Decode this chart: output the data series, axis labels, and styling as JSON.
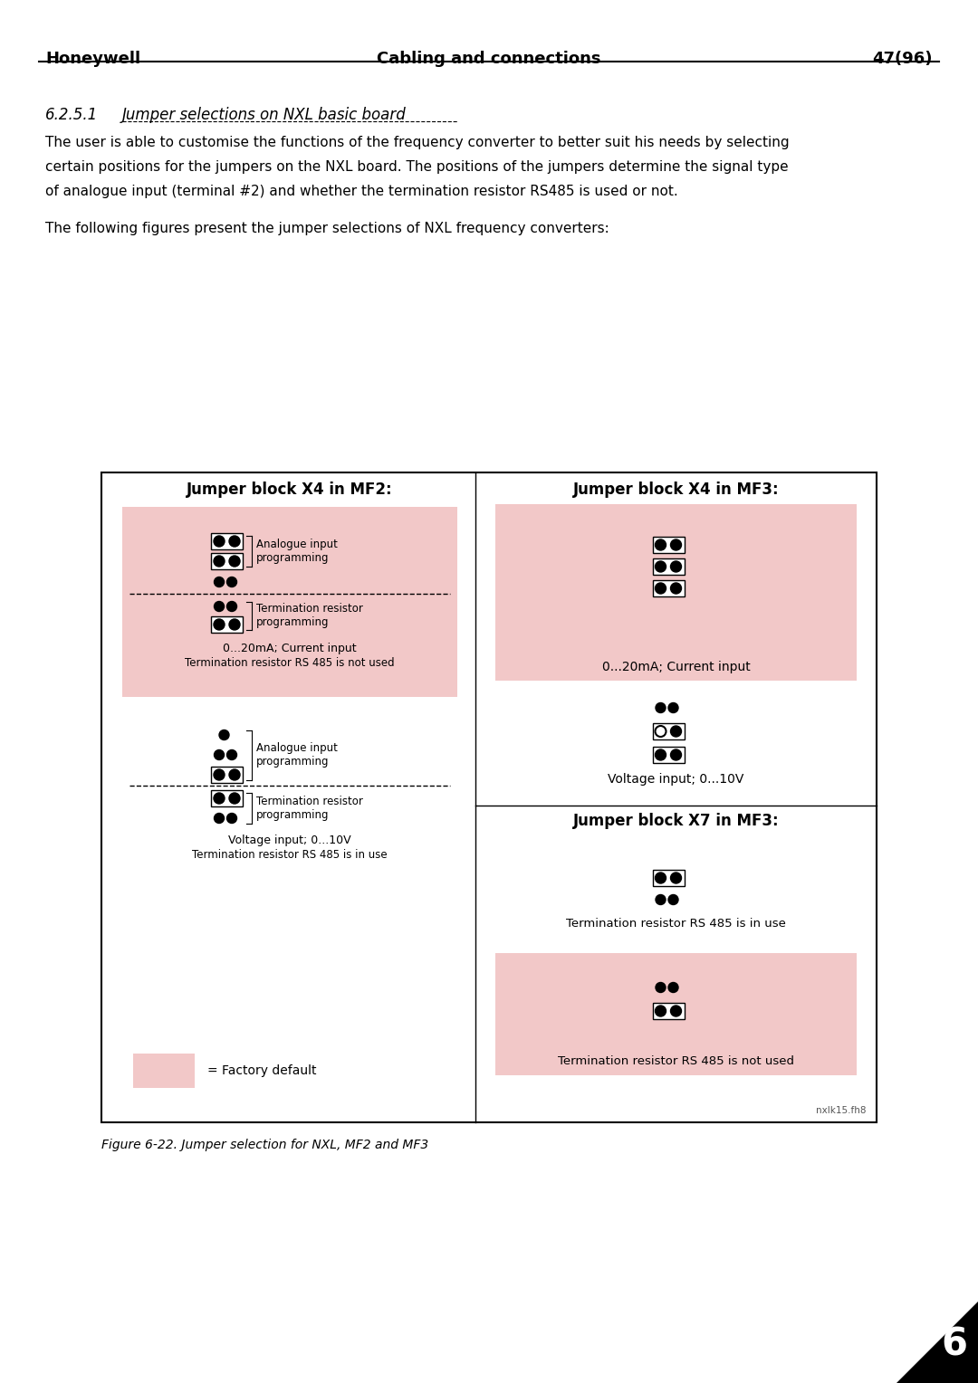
{
  "page_title_left": "Honeywell",
  "page_title_center": "Cabling and connections",
  "page_title_right": "47(96)",
  "section": "6.2.5.1",
  "section_title": "Jumper selections on NXL basic board",
  "para1_line1": "The user is able to customise the functions of the frequency converter to better suit his needs by selecting",
  "para1_line2": "certain positions for the jumpers on the NXL board. The positions of the jumpers determine the signal type",
  "para1_line3": "of analogue input (terminal #2) and whether the termination resistor RS485 is used or not.",
  "para2": "The following figures present the jumper selections of NXL frequency converters:",
  "fig_caption": "Figure 6-22. Jumper selection for NXL, MF2 and MF3",
  "fig_label": "nxlk15.fh8",
  "pink": "#f2c8c8",
  "bg_white": "#ffffff",
  "border_color": "#000000",
  "left_title": "Jumper block X4 in MF2:",
  "right_top_title": "Jumper block X4 in MF3:",
  "right_bot_title": "Jumper block X7 in MF3:",
  "label_analogue": "Analogue input\nprogramming",
  "label_termination": "Termination resistor\nprogramming",
  "label_current": "0...20mA; Current input",
  "label_term_not_used": "Termination resistor RS 485 is not used",
  "label_voltage": "Voltage input; 0...10V",
  "label_term_in_use": "Termination resistor RS 485 is in use",
  "label_factory": "= Factory default"
}
